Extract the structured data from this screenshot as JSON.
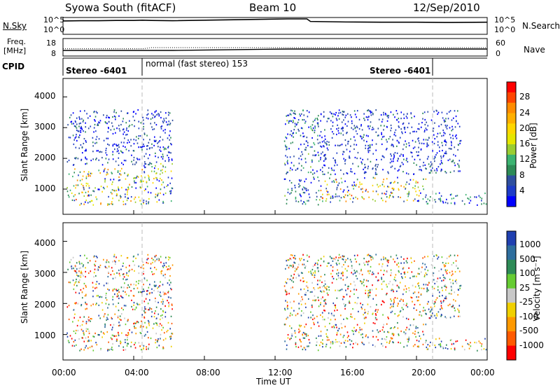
{
  "header": {
    "station": "Syowa South (fitACF)",
    "beam": "Beam 10",
    "date": "12/Sep/2010"
  },
  "side_labels": {
    "nsky": "N.Sky",
    "nsearch": "N.Search",
    "freq_line1": "Freq.",
    "freq_line2": "[MHz]",
    "nave": "Nave",
    "cpid": "CPID"
  },
  "cpid_labels": [
    "Stereo -6401",
    "normal (fast stereo) 153",
    "Stereo -6401"
  ],
  "axes": {
    "ylabel": "Slant Range [km]",
    "xlabel": "Time UT",
    "x_ticks": [
      "00:00",
      "04:00",
      "08:00",
      "12:00",
      "16:00",
      "20:00",
      "00:00"
    ],
    "y_ticks": [
      "1000",
      "2000",
      "3000",
      "4000"
    ],
    "noise_left_ticks": [
      "10^5",
      "10^0"
    ],
    "noise_right_ticks": [
      "10^5",
      "10^0"
    ],
    "freq_left_ticks": [
      "18",
      "8"
    ],
    "nave_right_ticks": [
      "60",
      "0"
    ]
  },
  "colorbars": {
    "power": {
      "label": "Power [dB]",
      "ticks": [
        "28",
        "24",
        "20",
        "16",
        "12",
        "8",
        "4"
      ],
      "colors": [
        "#ff0000",
        "#ff4500",
        "#ff8c00",
        "#ffb000",
        "#ffd700",
        "#e6e600",
        "#9acd32",
        "#3cb371",
        "#2e8b57",
        "#2f4f9f",
        "#1e3cc8",
        "#0000ff"
      ]
    },
    "velocity": {
      "label": "Velocity [m s⁻¹]",
      "ticks": [
        "1000",
        "500",
        "100",
        "25",
        "-25",
        "-100",
        "-500",
        "-1000"
      ],
      "colors": [
        "#2040b0",
        "#2e6e9e",
        "#2e8b57",
        "#66cc33",
        "#c8c8c8",
        "#f0d000",
        "#ff9900",
        "#ff5a00",
        "#ff0000"
      ]
    }
  },
  "chart_data": [
    {
      "type": "line",
      "panel": "noise",
      "xlabel": "Time UT",
      "x_range_hours": [
        0,
        24
      ],
      "series": [
        {
          "name": "N.Sky",
          "x": [
            0,
            1,
            2,
            3,
            4,
            4.5,
            5,
            6.2,
            12.7,
            13,
            13.4,
            13.8,
            14,
            16,
            18,
            20,
            22,
            24
          ],
          "y_log": [
            4.7,
            4.8,
            4.8,
            4.9,
            4.9,
            5.0,
            4.9,
            4.8,
            5.5,
            5.5,
            5.5,
            5.5,
            4.5,
            4.3,
            4.2,
            4.2,
            4.1,
            4.2
          ]
        }
      ]
    },
    {
      "type": "line",
      "panel": "frequency",
      "x_range_hours": [
        0,
        24
      ],
      "series": [
        {
          "name": "Freq.",
          "x": [
            0,
            6.2,
            12.7,
            13,
            13.4,
            13.8,
            14,
            24
          ],
          "y": [
            11,
            11,
            12,
            12,
            12,
            12,
            12,
            12
          ]
        },
        {
          "name": "Nave",
          "x": [
            0,
            4.5,
            5,
            24
          ],
          "y": [
            25,
            25,
            30,
            30
          ]
        }
      ]
    },
    {
      "type": "heatmap",
      "panel": "power",
      "xlabel": "Time UT",
      "ylabel": "Slant Range [km]",
      "x_range_hours": [
        0,
        24
      ],
      "y_range_km": [
        180,
        4600
      ],
      "legend": "right",
      "scatter_regions": [
        {
          "t": [
            0.2,
            4.5
          ],
          "r": [
            500,
            1700
          ],
          "value_range": [
            4,
            24
          ]
        },
        {
          "t": [
            4.5,
            6.2
          ],
          "r": [
            500,
            1900
          ],
          "value_range": [
            4,
            20
          ]
        },
        {
          "t": [
            0.2,
            6.2
          ],
          "r": [
            1800,
            3600
          ],
          "value_range": [
            4,
            8
          ]
        },
        {
          "t": [
            12.5,
            14.5
          ],
          "r": [
            500,
            3600
          ],
          "value_range": [
            4,
            12
          ]
        },
        {
          "t": [
            14.5,
            20.5
          ],
          "r": [
            600,
            1400
          ],
          "value_range": [
            4,
            24
          ]
        },
        {
          "t": [
            14.5,
            22.5
          ],
          "r": [
            1500,
            3600
          ],
          "value_range": [
            4,
            8
          ]
        },
        {
          "t": [
            20.5,
            24
          ],
          "r": [
            500,
            900
          ],
          "value_range": [
            4,
            12
          ]
        }
      ]
    },
    {
      "type": "heatmap",
      "panel": "velocity",
      "xlabel": "Time UT",
      "ylabel": "Slant Range [km]",
      "x_range_hours": [
        0,
        24
      ],
      "y_range_km": [
        180,
        4600
      ],
      "legend": "right",
      "scatter_regions": [
        {
          "t": [
            0.2,
            4.5
          ],
          "r": [
            500,
            1700
          ],
          "value_range": [
            -500,
            500
          ]
        },
        {
          "t": [
            4.5,
            6.2
          ],
          "r": [
            500,
            1900
          ],
          "value_range": [
            -500,
            100
          ]
        },
        {
          "t": [
            0.2,
            6.2
          ],
          "r": [
            1800,
            3600
          ],
          "value_range": [
            -1000,
            1000
          ]
        },
        {
          "t": [
            12.5,
            14.5
          ],
          "r": [
            500,
            3600
          ],
          "value_range": [
            -1000,
            1000
          ]
        },
        {
          "t": [
            14.5,
            20.5
          ],
          "r": [
            600,
            1400
          ],
          "value_range": [
            -500,
            100
          ]
        },
        {
          "t": [
            14.5,
            22.5
          ],
          "r": [
            1500,
            3600
          ],
          "value_range": [
            -1000,
            1000
          ]
        },
        {
          "t": [
            20.5,
            24
          ],
          "r": [
            500,
            900
          ],
          "value_range": [
            -100,
            500
          ]
        }
      ]
    }
  ]
}
